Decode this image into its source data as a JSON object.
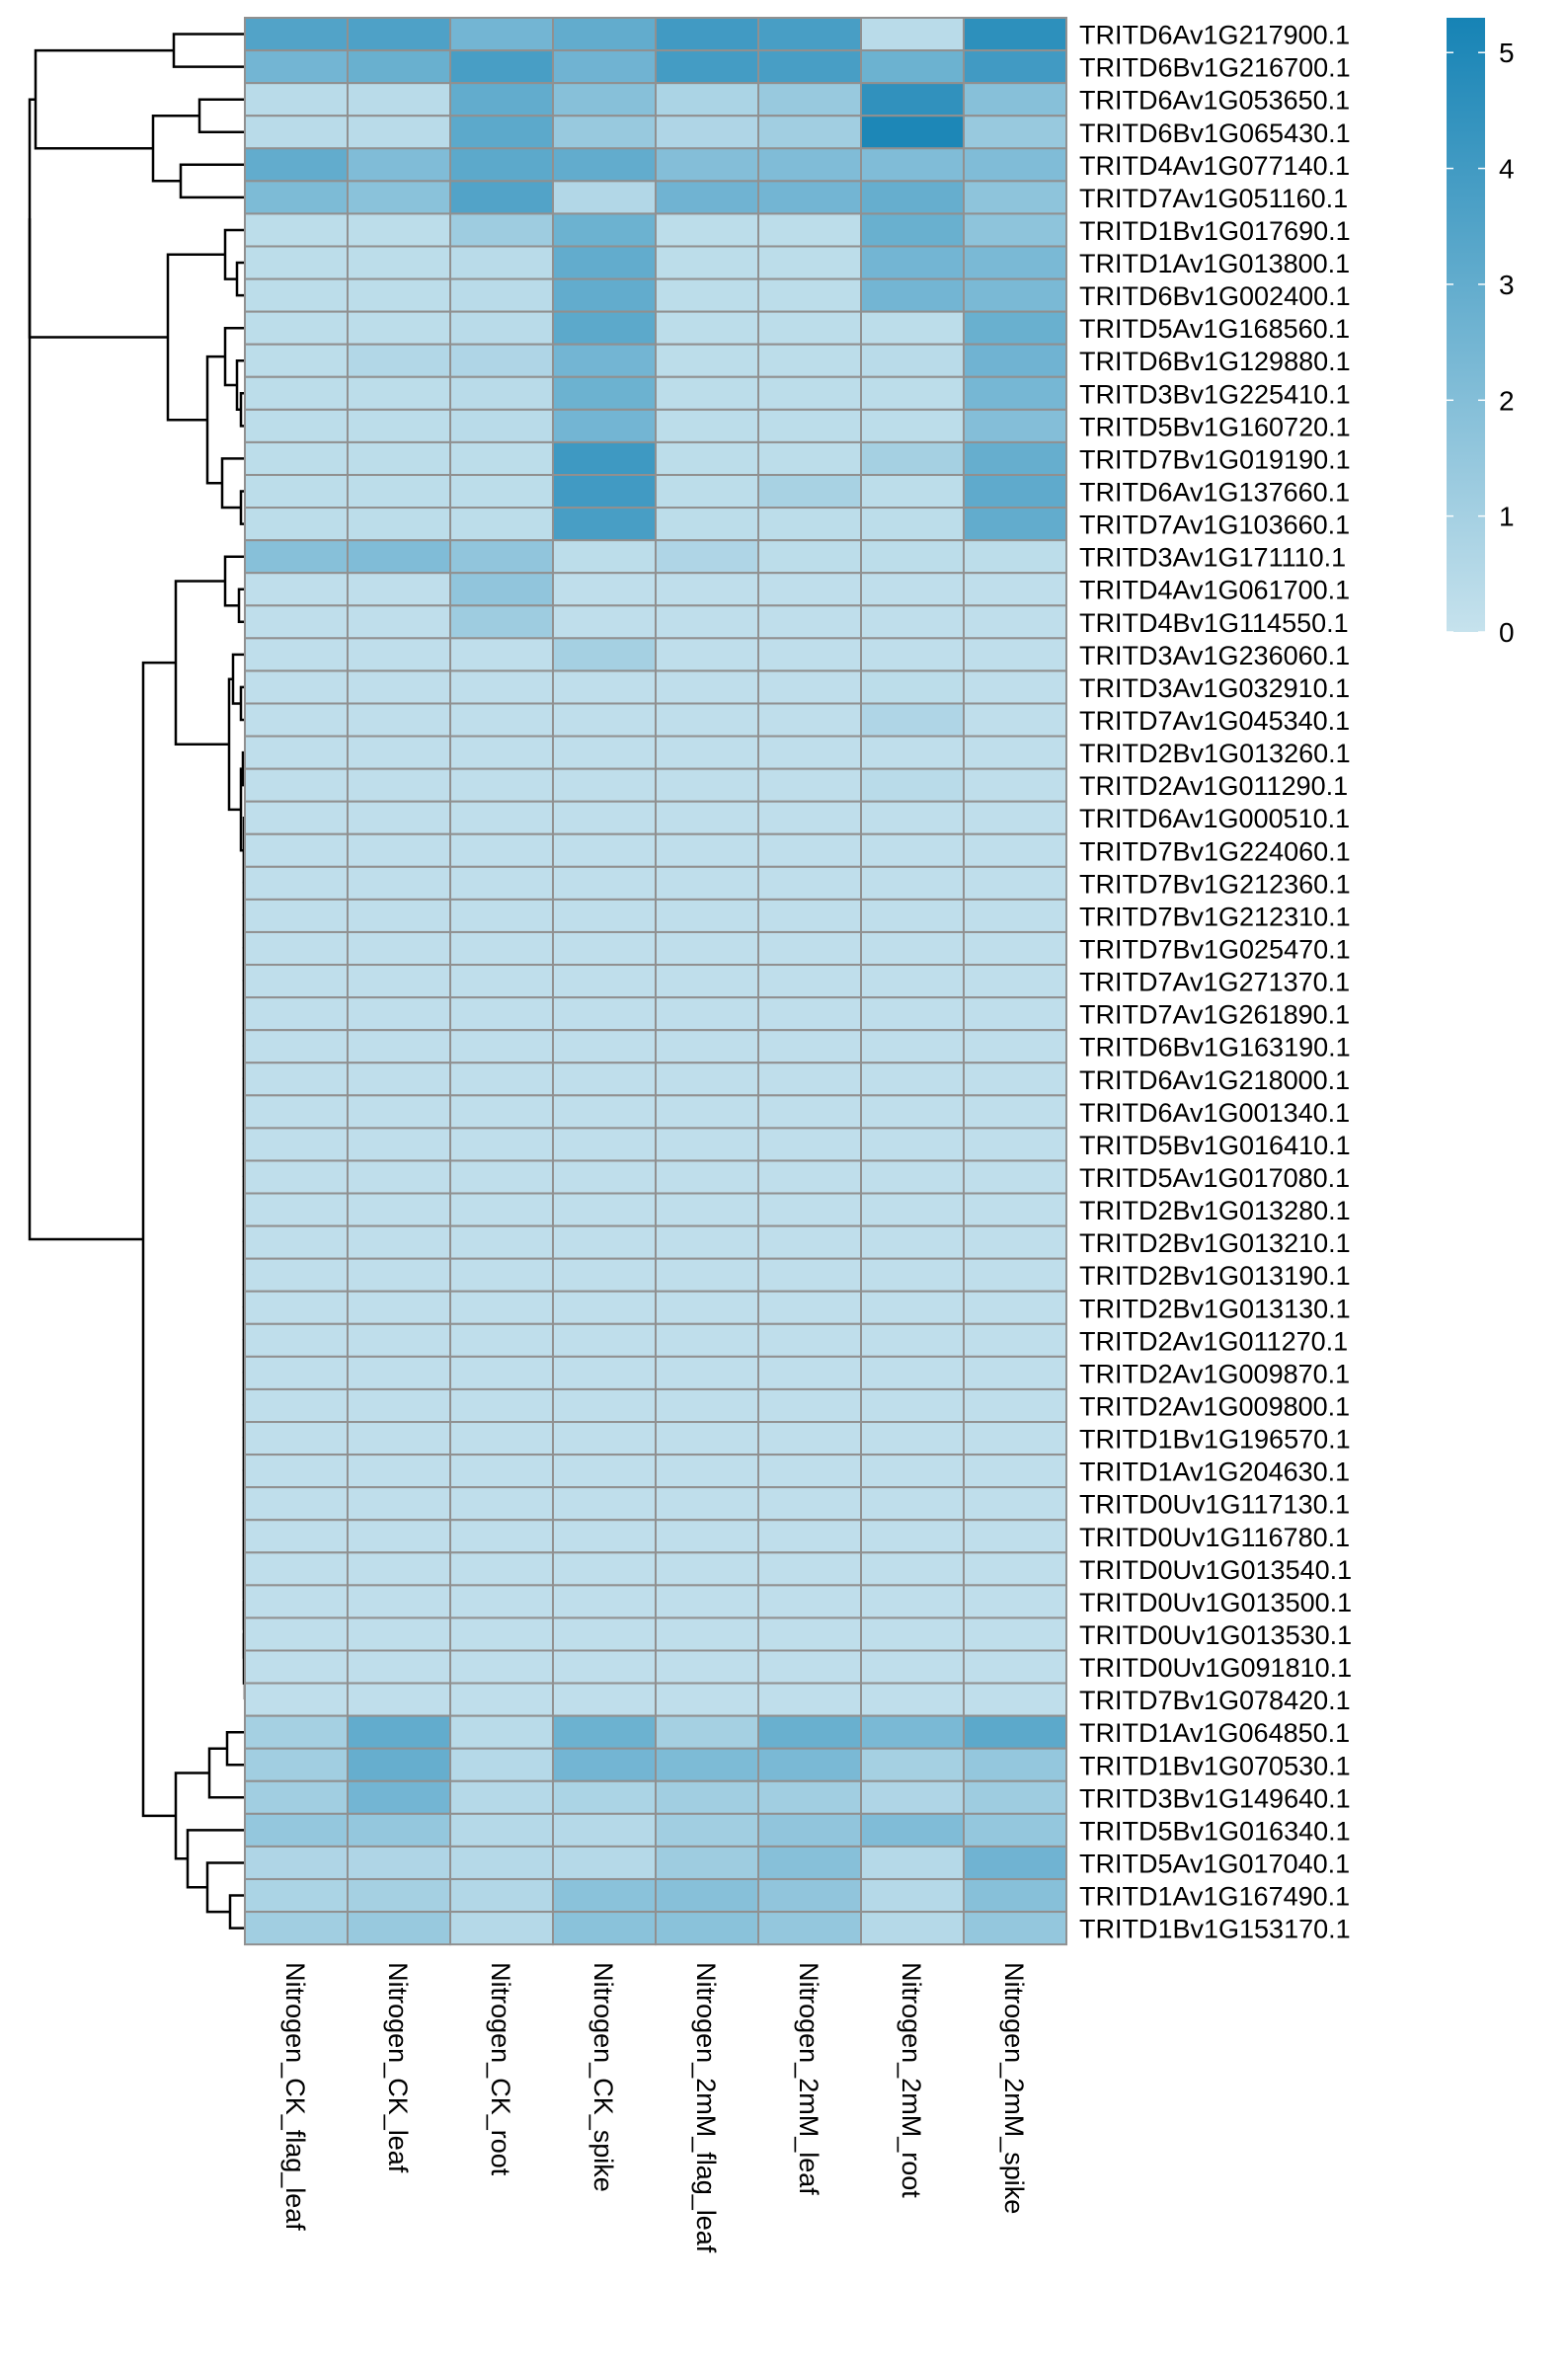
{
  "chart_data": {
    "type": "heatmap",
    "title": "",
    "columns": [
      "Nitrogen_CK_flag_leaf",
      "Nitrogen_CK_leaf",
      "Nitrogen_CK_root",
      "Nitrogen_CK_spike",
      "Nitrogen_2mM_flag_leaf",
      "Nitrogen_2mM_leaf",
      "Nitrogen_2mM_root",
      "Nitrogen_2mM_spike"
    ],
    "rows": [
      "TRITD6Av1G217900.1",
      "TRITD6Bv1G216700.1",
      "TRITD6Av1G053650.1",
      "TRITD6Bv1G065430.1",
      "TRITD4Av1G077140.1",
      "TRITD7Av1G051160.1",
      "TRITD1Bv1G017690.1",
      "TRITD1Av1G013800.1",
      "TRITD6Bv1G002400.1",
      "TRITD5Av1G168560.1",
      "TRITD6Bv1G129880.1",
      "TRITD3Bv1G225410.1",
      "TRITD5Bv1G160720.1",
      "TRITD7Bv1G019190.1",
      "TRITD6Av1G137660.1",
      "TRITD7Av1G103660.1",
      "TRITD3Av1G171110.1",
      "TRITD4Av1G061700.1",
      "TRITD4Bv1G114550.1",
      "TRITD3Av1G236060.1",
      "TRITD3Av1G032910.1",
      "TRITD7Av1G045340.1",
      "TRITD2Bv1G013260.1",
      "TRITD2Av1G011290.1",
      "TRITD6Av1G000510.1",
      "TRITD7Bv1G224060.1",
      "TRITD7Bv1G212360.1",
      "TRITD7Bv1G212310.1",
      "TRITD7Bv1G025470.1",
      "TRITD7Av1G271370.1",
      "TRITD7Av1G261890.1",
      "TRITD6Bv1G163190.1",
      "TRITD6Av1G218000.1",
      "TRITD6Av1G001340.1",
      "TRITD5Bv1G016410.1",
      "TRITD5Av1G017080.1",
      "TRITD2Bv1G013280.1",
      "TRITD2Bv1G013210.1",
      "TRITD2Bv1G013190.1",
      "TRITD2Bv1G013130.1",
      "TRITD2Av1G011270.1",
      "TRITD2Av1G009870.1",
      "TRITD2Av1G009800.1",
      "TRITD1Bv1G196570.1",
      "TRITD1Av1G204630.1",
      "TRITD0Uv1G117130.1",
      "TRITD0Uv1G116780.1",
      "TRITD0Uv1G013540.1",
      "TRITD0Uv1G013500.1",
      "TRITD0Uv1G013530.1",
      "TRITD0Uv1G091810.1",
      "TRITD7Bv1G078420.1",
      "TRITD1Av1G064850.1",
      "TRITD1Bv1G070530.1",
      "TRITD3Bv1G149640.1",
      "TRITD5Bv1G016340.1",
      "TRITD5Av1G017040.1",
      "TRITD1Av1G167490.1",
      "TRITD1Bv1G153170.1"
    ],
    "values": [
      [
        3.5,
        3.6,
        2.5,
        3.0,
        4.0,
        3.8,
        0.4,
        4.6
      ],
      [
        2.5,
        2.8,
        3.8,
        2.6,
        3.9,
        3.8,
        2.7,
        4.0
      ],
      [
        0.4,
        0.4,
        3.0,
        1.9,
        0.8,
        1.4,
        4.5,
        1.9
      ],
      [
        0.4,
        0.4,
        3.2,
        1.4,
        0.7,
        1.1,
        5.1,
        1.4
      ],
      [
        3.0,
        2.1,
        3.2,
        3.0,
        2.0,
        2.1,
        2.1,
        2.1
      ],
      [
        2.2,
        1.8,
        3.5,
        0.6,
        2.6,
        2.5,
        2.9,
        1.7
      ],
      [
        0.3,
        0.3,
        1.2,
        2.7,
        0.3,
        0.3,
        2.8,
        1.7
      ],
      [
        0.3,
        0.3,
        0.4,
        3.0,
        0.3,
        0.3,
        2.5,
        2.3
      ],
      [
        0.3,
        0.3,
        0.4,
        3.0,
        0.3,
        0.3,
        2.5,
        2.3
      ],
      [
        0.3,
        0.3,
        0.4,
        3.2,
        0.3,
        0.3,
        0.3,
        2.8
      ],
      [
        0.3,
        0.6,
        0.7,
        2.5,
        0.3,
        0.3,
        0.4,
        2.6
      ],
      [
        0.3,
        0.3,
        0.4,
        2.7,
        0.3,
        0.3,
        0.3,
        2.4
      ],
      [
        0.3,
        0.3,
        0.4,
        2.5,
        0.3,
        0.3,
        0.3,
        2.0
      ],
      [
        0.3,
        0.3,
        0.3,
        4.1,
        0.3,
        0.3,
        1.0,
        2.9
      ],
      [
        0.3,
        0.3,
        0.3,
        4.0,
        0.3,
        0.9,
        0.3,
        3.1
      ],
      [
        0.3,
        0.3,
        0.3,
        3.8,
        0.3,
        0.3,
        0.3,
        3.0
      ],
      [
        1.9,
        2.1,
        1.6,
        0.3,
        0.7,
        0.3,
        0.3,
        0.3
      ],
      [
        0.2,
        0.2,
        1.6,
        0.2,
        0.2,
        0.2,
        0.2,
        0.2
      ],
      [
        0.2,
        0.2,
        1.2,
        0.2,
        0.2,
        0.2,
        0.2,
        0.2
      ],
      [
        0.2,
        0.2,
        0.2,
        1.0,
        0.2,
        0.2,
        0.2,
        0.2
      ],
      [
        0.2,
        0.2,
        0.2,
        0.2,
        0.2,
        0.2,
        0.3,
        0.2
      ],
      [
        0.2,
        0.2,
        0.2,
        0.2,
        0.2,
        0.2,
        0.7,
        0.2
      ],
      [
        0.2,
        0.2,
        0.2,
        0.2,
        0.2,
        0.2,
        0.2,
        0.2
      ],
      [
        0.2,
        0.2,
        0.2,
        0.2,
        0.2,
        0.2,
        0.4,
        0.2
      ],
      [
        0.2,
        0.2,
        0.2,
        0.2,
        0.2,
        0.2,
        0.2,
        0.2
      ],
      [
        0.2,
        0.2,
        0.2,
        0.2,
        0.2,
        0.2,
        0.2,
        0.2
      ],
      [
        0.2,
        0.2,
        0.2,
        0.2,
        0.2,
        0.2,
        0.2,
        0.2
      ],
      [
        0.2,
        0.2,
        0.2,
        0.2,
        0.2,
        0.2,
        0.2,
        0.2
      ],
      [
        0.2,
        0.2,
        0.2,
        0.2,
        0.2,
        0.2,
        0.2,
        0.2
      ],
      [
        0.2,
        0.2,
        0.2,
        0.2,
        0.2,
        0.2,
        0.2,
        0.2
      ],
      [
        0.2,
        0.2,
        0.2,
        0.2,
        0.2,
        0.2,
        0.2,
        0.2
      ],
      [
        0.2,
        0.2,
        0.2,
        0.2,
        0.2,
        0.2,
        0.2,
        0.2
      ],
      [
        0.2,
        0.2,
        0.2,
        0.2,
        0.2,
        0.2,
        0.2,
        0.2
      ],
      [
        0.2,
        0.2,
        0.2,
        0.2,
        0.2,
        0.2,
        0.2,
        0.2
      ],
      [
        0.2,
        0.2,
        0.2,
        0.2,
        0.2,
        0.2,
        0.2,
        0.2
      ],
      [
        0.2,
        0.2,
        0.2,
        0.2,
        0.2,
        0.2,
        0.2,
        0.2
      ],
      [
        0.2,
        0.2,
        0.2,
        0.2,
        0.2,
        0.2,
        0.2,
        0.2
      ],
      [
        0.2,
        0.2,
        0.2,
        0.2,
        0.2,
        0.2,
        0.2,
        0.2
      ],
      [
        0.2,
        0.2,
        0.2,
        0.2,
        0.2,
        0.2,
        0.2,
        0.2
      ],
      [
        0.2,
        0.2,
        0.2,
        0.2,
        0.2,
        0.2,
        0.2,
        0.2
      ],
      [
        0.2,
        0.2,
        0.2,
        0.2,
        0.2,
        0.2,
        0.2,
        0.2
      ],
      [
        0.2,
        0.2,
        0.2,
        0.2,
        0.2,
        0.2,
        0.2,
        0.2
      ],
      [
        0.2,
        0.2,
        0.2,
        0.2,
        0.2,
        0.2,
        0.2,
        0.2
      ],
      [
        0.2,
        0.2,
        0.2,
        0.2,
        0.2,
        0.2,
        0.2,
        0.2
      ],
      [
        0.2,
        0.2,
        0.2,
        0.2,
        0.2,
        0.2,
        0.2,
        0.2
      ],
      [
        0.2,
        0.2,
        0.2,
        0.2,
        0.2,
        0.2,
        0.2,
        0.2
      ],
      [
        0.2,
        0.2,
        0.2,
        0.2,
        0.2,
        0.2,
        0.2,
        0.2
      ],
      [
        0.2,
        0.2,
        0.2,
        0.2,
        0.2,
        0.2,
        0.2,
        0.2
      ],
      [
        0.2,
        0.2,
        0.2,
        0.2,
        0.2,
        0.2,
        0.2,
        0.2
      ],
      [
        0.2,
        0.2,
        0.2,
        0.2,
        0.2,
        0.2,
        0.2,
        0.2
      ],
      [
        0.2,
        0.2,
        0.2,
        0.2,
        0.2,
        0.2,
        0.2,
        0.2
      ],
      [
        0.2,
        0.2,
        0.2,
        0.2,
        0.2,
        0.2,
        0.2,
        0.2
      ],
      [
        1.0,
        3.0,
        0.4,
        2.7,
        1.0,
        2.8,
        2.3,
        3.2
      ],
      [
        1.1,
        2.9,
        0.5,
        2.5,
        2.2,
        2.3,
        1.0,
        1.5
      ],
      [
        1.1,
        2.5,
        0.5,
        0.8,
        1.1,
        1.1,
        0.7,
        1.2
      ],
      [
        1.5,
        1.5,
        0.5,
        0.5,
        1.1,
        1.6,
        2.1,
        1.5
      ],
      [
        0.7,
        0.7,
        0.5,
        0.5,
        1.2,
        1.9,
        0.5,
        2.6
      ],
      [
        0.8,
        1.0,
        0.6,
        1.8,
        1.9,
        1.6,
        0.5,
        1.9
      ],
      [
        1.1,
        1.4,
        0.5,
        1.8,
        1.8,
        1.5,
        0.5,
        1.5
      ]
    ],
    "color_scale": {
      "low": "#c6e2ed",
      "high": "#1683b5",
      "min": 0,
      "max": 5.3,
      "ticks": [
        0,
        1,
        2,
        3,
        4,
        5
      ]
    },
    "cell_border_color": "#909090",
    "row_dendrogram": true,
    "column_dendrogram": false,
    "legend_position": "top-right"
  }
}
